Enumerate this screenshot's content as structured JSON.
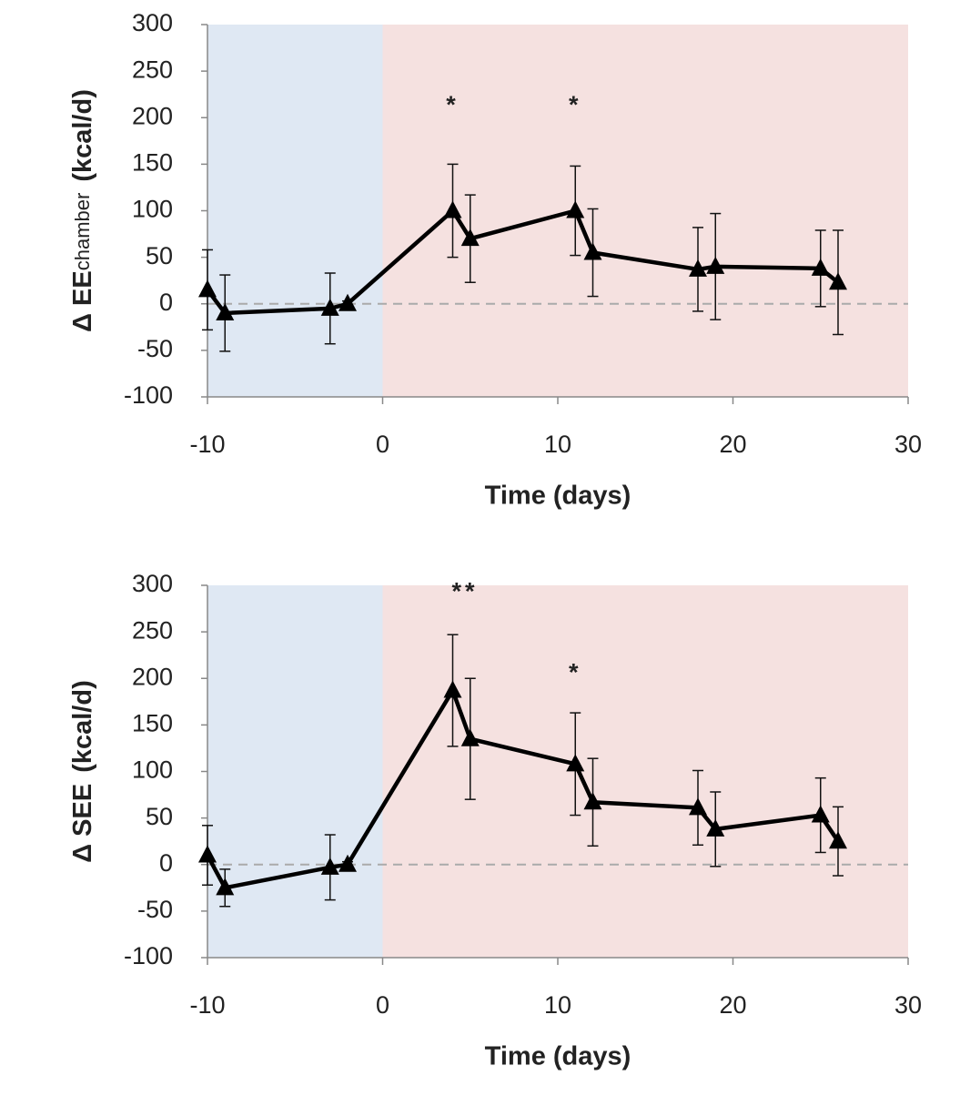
{
  "chart_data": [
    {
      "type": "line",
      "xlabel": "Time (days)",
      "ylabel": "Δ EE",
      "ylabel_sub": "chamber",
      "ylabel_unit": "(kcal/d)",
      "x": [
        -10,
        -9,
        -3,
        -2,
        4,
        5,
        11,
        12,
        18,
        19,
        25,
        26
      ],
      "series": [
        {
          "color": "#000000",
          "values": [
            15,
            -10,
            -5,
            0,
            100,
            70,
            100,
            55,
            37,
            40,
            38,
            23
          ],
          "errors": [
            43,
            41,
            38,
            3,
            50,
            47,
            48,
            47,
            45,
            57,
            41,
            56
          ]
        }
      ],
      "xlim": [
        -10,
        30
      ],
      "xticks": [
        -10,
        0,
        10,
        20,
        30
      ],
      "ylim": [
        -100,
        300
      ],
      "yticks": [
        -100,
        -50,
        0,
        50,
        100,
        150,
        200,
        250,
        300
      ],
      "regions": [
        {
          "from": -10,
          "to": 0,
          "color": "#dfe8f3"
        },
        {
          "from": 0,
          "to": 30,
          "color": "#f5e1e0"
        }
      ],
      "reference_line": 0,
      "annotations": [
        {
          "text": "*",
          "x": 4,
          "y": 212
        },
        {
          "text": "*",
          "x": 11,
          "y": 212
        }
      ]
    },
    {
      "type": "line",
      "xlabel": "Time (days)",
      "ylabel": "Δ SEE",
      "ylabel_unit": "(kcal/d)",
      "x": [
        -10,
        -9,
        -3,
        -2,
        4,
        5,
        11,
        12,
        18,
        19,
        25,
        26
      ],
      "series": [
        {
          "color": "#000000",
          "values": [
            10,
            -25,
            -3,
            0,
            187,
            135,
            108,
            67,
            61,
            38,
            53,
            25
          ],
          "errors": [
            32,
            20,
            35,
            3,
            60,
            65,
            55,
            47,
            40,
            40,
            40,
            37
          ]
        }
      ],
      "xlim": [
        -10,
        30
      ],
      "xticks": [
        -10,
        0,
        10,
        20,
        30
      ],
      "ylim": [
        -100,
        300
      ],
      "yticks": [
        -100,
        -50,
        0,
        50,
        100,
        150,
        200,
        250,
        300
      ],
      "regions": [
        {
          "from": -10,
          "to": 0,
          "color": "#dfe8f3"
        },
        {
          "from": 0,
          "to": 30,
          "color": "#f5e1e0"
        }
      ],
      "reference_line": 0,
      "annotations": [
        {
          "text": "**",
          "x": 4.7,
          "y": 292
        },
        {
          "text": "*",
          "x": 11,
          "y": 205
        }
      ]
    }
  ]
}
